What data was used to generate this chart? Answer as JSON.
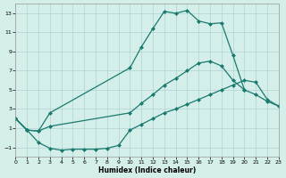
{
  "background_color": "#d4eeea",
  "line_color": "#1a7a6e",
  "grid_color": "#b0d4d0",
  "xlabel": "Humidex (Indice chaleur)",
  "xlim": [
    0,
    23
  ],
  "ylim": [
    -2,
    14
  ],
  "xticks": [
    0,
    1,
    2,
    3,
    4,
    5,
    6,
    7,
    8,
    9,
    10,
    11,
    12,
    13,
    14,
    15,
    16,
    17,
    18,
    19,
    20,
    21,
    22,
    23
  ],
  "yticks": [
    -1,
    1,
    3,
    5,
    7,
    9,
    11,
    13
  ],
  "curve1_x": [
    0,
    1,
    2,
    3,
    10,
    11,
    12,
    13,
    14,
    15,
    16,
    17,
    18,
    19,
    20
  ],
  "curve1_y": [
    2.0,
    0.8,
    0.7,
    2.6,
    7.3,
    9.5,
    11.4,
    13.2,
    13.0,
    13.3,
    12.2,
    11.9,
    12.0,
    8.6,
    5.0
  ],
  "curve2_x": [
    0,
    1,
    2,
    3,
    10,
    11,
    12,
    13,
    14,
    15,
    16,
    17,
    18,
    19,
    20,
    21,
    22,
    23
  ],
  "curve2_y": [
    2.0,
    0.8,
    0.7,
    1.2,
    2.6,
    3.6,
    4.5,
    5.5,
    6.2,
    7.0,
    7.8,
    8.0,
    7.5,
    6.0,
    5.0,
    4.5,
    3.8,
    3.3
  ],
  "curve3_x": [
    0,
    1,
    2,
    3,
    4,
    5,
    6,
    7,
    8,
    9,
    10,
    11,
    12,
    13,
    14,
    15,
    16,
    17,
    18,
    19,
    20,
    21,
    22,
    23
  ],
  "curve3_y": [
    2.0,
    0.8,
    -0.5,
    -1.1,
    -1.3,
    -1.2,
    -1.2,
    -1.2,
    -1.1,
    -0.8,
    0.8,
    1.4,
    2.0,
    2.6,
    3.0,
    3.5,
    4.0,
    4.5,
    5.0,
    5.5,
    6.0,
    5.8,
    4.0,
    3.3
  ]
}
